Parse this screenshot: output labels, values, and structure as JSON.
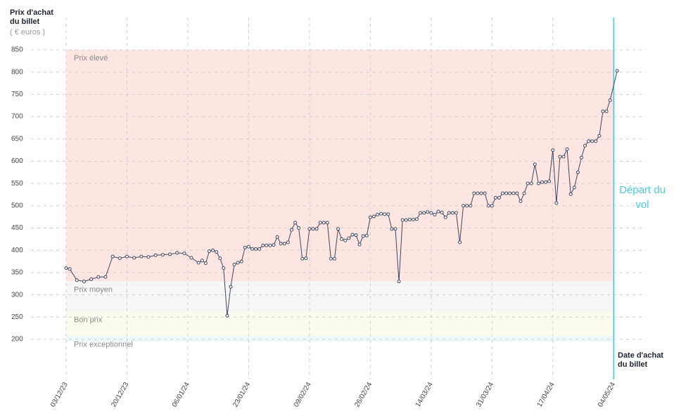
{
  "chart_data": {
    "type": "line",
    "y_label": "Prix d'achat du billet",
    "y_unit": "( € euros )",
    "x_label": "Date d'achat du billet",
    "x": [
      "2023-12-03",
      "2023-12-04",
      "2023-12-06",
      "2023-12-08",
      "2023-12-10",
      "2023-12-12",
      "2023-12-14",
      "2023-12-16",
      "2023-12-18",
      "2023-12-20",
      "2023-12-22",
      "2023-12-24",
      "2023-12-26",
      "2023-12-28",
      "2023-12-30",
      "2024-01-01",
      "2024-01-03",
      "2024-01-05",
      "2024-01-07",
      "2024-01-09",
      "2024-01-10",
      "2024-01-11",
      "2024-01-12",
      "2024-01-13",
      "2024-01-14",
      "2024-01-15",
      "2024-01-16",
      "2024-01-17",
      "2024-01-18",
      "2024-01-19",
      "2024-01-20",
      "2024-01-21",
      "2024-01-22",
      "2024-01-23",
      "2024-01-24",
      "2024-01-25",
      "2024-01-26",
      "2024-01-27",
      "2024-01-28",
      "2024-01-29",
      "2024-01-30",
      "2024-01-31",
      "2024-02-01",
      "2024-02-02",
      "2024-02-03",
      "2024-02-04",
      "2024-02-05",
      "2024-02-06",
      "2024-02-07",
      "2024-02-08",
      "2024-02-09",
      "2024-02-10",
      "2024-02-11",
      "2024-02-12",
      "2024-02-13",
      "2024-02-14",
      "2024-02-15",
      "2024-02-16",
      "2024-02-17",
      "2024-02-18",
      "2024-02-19",
      "2024-02-20",
      "2024-02-21",
      "2024-02-22",
      "2024-02-23",
      "2024-02-24",
      "2024-02-25",
      "2024-02-26",
      "2024-02-27",
      "2024-02-28",
      "2024-02-29",
      "2024-03-01",
      "2024-03-02",
      "2024-03-03",
      "2024-03-04",
      "2024-03-05",
      "2024-03-06",
      "2024-03-07",
      "2024-03-08",
      "2024-03-09",
      "2024-03-10",
      "2024-03-11",
      "2024-03-12",
      "2024-03-13",
      "2024-03-14",
      "2024-03-15",
      "2024-03-16",
      "2024-03-17",
      "2024-03-18",
      "2024-03-19",
      "2024-03-20",
      "2024-03-21",
      "2024-03-22",
      "2024-03-23",
      "2024-03-24",
      "2024-03-25",
      "2024-03-26",
      "2024-03-27",
      "2024-03-28",
      "2024-03-29",
      "2024-03-30",
      "2024-03-31",
      "2024-04-01",
      "2024-04-02",
      "2024-04-03",
      "2024-04-04",
      "2024-04-05",
      "2024-04-06",
      "2024-04-07",
      "2024-04-08",
      "2024-04-09",
      "2024-04-10",
      "2024-04-11",
      "2024-04-12",
      "2024-04-13",
      "2024-04-14",
      "2024-04-15",
      "2024-04-16",
      "2024-04-17",
      "2024-04-18",
      "2024-04-19",
      "2024-04-20",
      "2024-04-21",
      "2024-04-22",
      "2024-04-23",
      "2024-04-24",
      "2024-04-25",
      "2024-04-26",
      "2024-04-27",
      "2024-04-28",
      "2024-04-29",
      "2024-04-30",
      "2024-05-01",
      "2024-05-02",
      "2024-05-03",
      "2024-05-05"
    ],
    "series": [
      {
        "color": "#3d4660",
        "values": [
          360,
          358,
          333,
          330,
          335,
          340,
          340,
          386,
          382,
          386,
          383,
          386,
          385,
          389,
          390,
          391,
          394,
          393,
          383,
          372,
          377,
          371,
          398,
          400,
          396,
          382,
          360,
          253,
          318,
          368,
          372,
          375,
          406,
          408,
          403,
          403,
          403,
          411,
          411,
          411,
          412,
          430,
          415,
          415,
          418,
          446,
          462,
          450,
          381,
          382,
          448,
          448,
          448,
          462,
          462,
          462,
          381,
          381,
          448,
          425,
          422,
          427,
          435,
          434,
          413,
          432,
          433,
          474,
          476,
          480,
          482,
          481,
          481,
          448,
          448,
          330,
          468,
          468,
          469,
          469,
          470,
          484,
          484,
          486,
          484,
          480,
          487,
          485,
          474,
          484,
          484,
          484,
          418,
          500,
          500,
          500,
          528,
          528,
          528,
          528,
          500,
          500,
          518,
          518,
          528,
          528,
          528,
          528,
          528,
          510,
          528,
          550,
          550,
          593,
          550,
          553,
          553,
          555,
          625,
          506,
          610,
          610,
          627,
          526,
          541,
          575,
          608,
          635,
          645,
          645,
          645,
          657,
          712,
          712,
          737,
          803
        ]
      }
    ],
    "xlim": [
      "2023-12-03",
      "2024-05-13"
    ],
    "xticks": [
      {
        "value": "2023-12-03",
        "label": "03/12/23"
      },
      {
        "value": "2023-12-20",
        "label": "20/12/23"
      },
      {
        "value": "2024-01-06",
        "label": "06/01/24"
      },
      {
        "value": "2024-01-23",
        "label": "23/01/24"
      },
      {
        "value": "2024-02-09",
        "label": "09/02/24"
      },
      {
        "value": "2024-02-26",
        "label": "26/02/24"
      },
      {
        "value": "2024-03-14",
        "label": "14/03/24"
      },
      {
        "value": "2024-03-31",
        "label": "31/03/24"
      },
      {
        "value": "2024-04-17",
        "label": "17/04/24"
      },
      {
        "value": "2024-05-04",
        "label": "04/05/24"
      }
    ],
    "ylim": [
      200,
      850
    ],
    "yticks": [
      200,
      250,
      300,
      350,
      400,
      450,
      500,
      550,
      600,
      650,
      700,
      750,
      800,
      850
    ],
    "grid": true,
    "bands": [
      {
        "name": "Prix élevé",
        "from": 330,
        "to": 850,
        "color": "#fde6e1"
      },
      {
        "name": "Prix moyen",
        "from": 262,
        "to": 330,
        "color": "#f6f6f6"
      },
      {
        "name": "Bon prix",
        "from": 207,
        "to": 262,
        "color": "#fcfcee"
      },
      {
        "name": "Prix exceptionnel",
        "from": 195,
        "to": 207,
        "color": "#eaf8fb"
      }
    ],
    "departure": {
      "date": "2024-05-04",
      "label": "Départ du vol",
      "color": "#4cc9e0"
    }
  }
}
